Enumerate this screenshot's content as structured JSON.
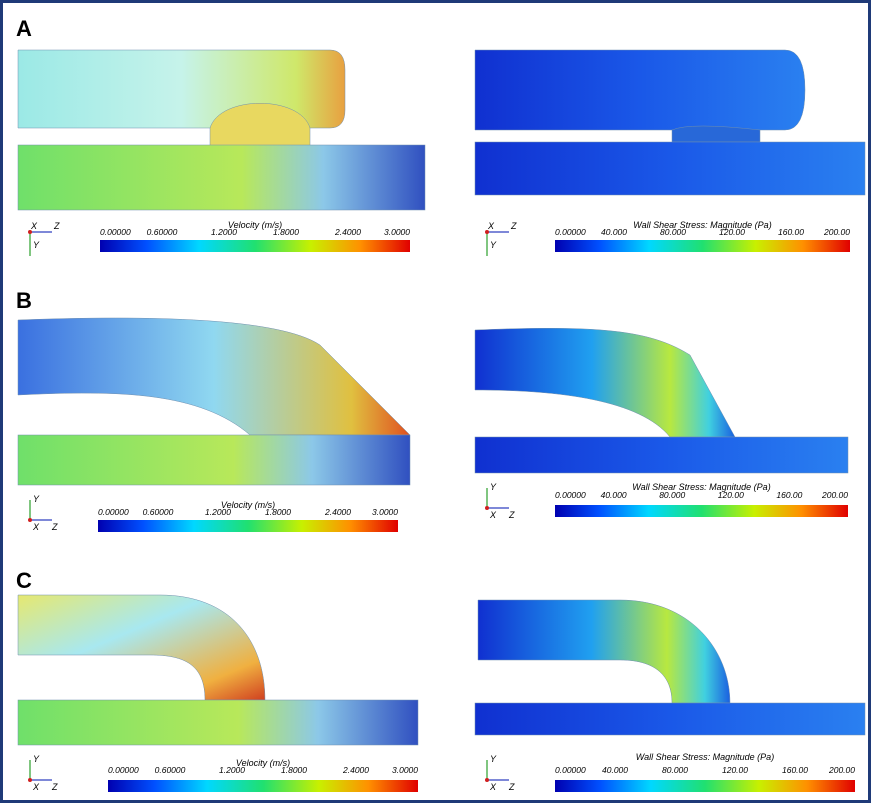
{
  "panels": [
    {
      "label": "A",
      "left": {
        "axes": [
          "X",
          "Z",
          "Y"
        ],
        "colorbar": {
          "title": "Velocity (m/s)",
          "ticks": [
            "0.00000",
            "0.60000",
            "1.2000",
            "1.8000",
            "2.4000",
            "3.0000"
          ]
        }
      },
      "right": {
        "axes": [
          "X",
          "Z",
          "Y"
        ],
        "colorbar": {
          "title": "Wall Shear Stress: Magnitude (Pa)",
          "ticks": [
            "0.00000",
            "40.000",
            "80.000",
            "120.00",
            "160.00",
            "200.00"
          ]
        }
      }
    },
    {
      "label": "B",
      "left": {
        "axes": [
          "Y",
          "X",
          "Z"
        ],
        "colorbar": {
          "title": "Velocity (m/s)",
          "ticks": [
            "0.00000",
            "0.60000",
            "1.2000",
            "1.8000",
            "2.4000",
            "3.0000"
          ]
        }
      },
      "right": {
        "axes": [
          "Y",
          "X",
          "Z"
        ],
        "colorbar": {
          "title": "Wall Shear Stress: Magnitude (Pa)",
          "ticks": [
            "0.00000",
            "40.000",
            "80.000",
            "120.00",
            "160.00",
            "200.00"
          ]
        }
      }
    },
    {
      "label": "C",
      "left": {
        "axes": [
          "Y",
          "X",
          "Z"
        ],
        "colorbar": {
          "title": "Velocity (m/s)",
          "ticks": [
            "0.00000",
            "0.60000",
            "1.2000",
            "1.8000",
            "2.4000",
            "3.0000"
          ]
        }
      },
      "right": {
        "axes": [
          "Y",
          "X",
          "Z"
        ],
        "colorbar": {
          "title": "Wall Shear Stress: Magnitude (Pa)",
          "ticks": [
            "0.00000",
            "40.000",
            "80.000",
            "120.00",
            "160.00",
            "200.00"
          ]
        }
      }
    }
  ]
}
